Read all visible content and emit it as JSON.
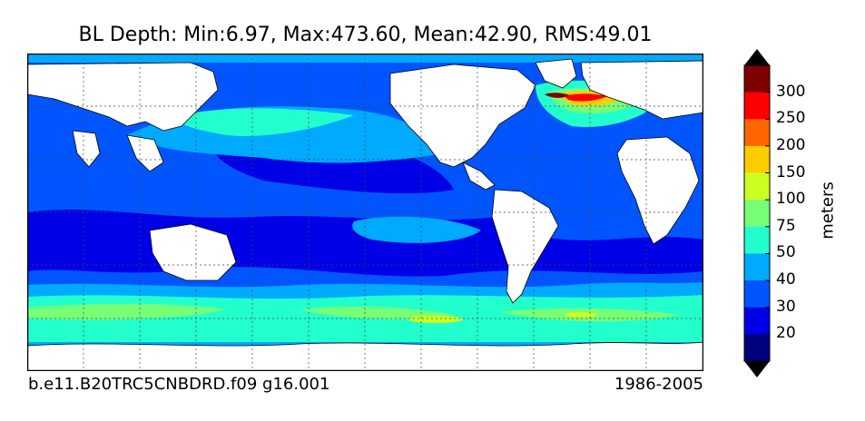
{
  "title": "BL Depth: Min:6.97, Max:473.60, Mean:42.90, RMS:49.01",
  "case_label": "b.e11.B20TRC5CNBDRD.f09 g16.001",
  "period_label": "1986-2005",
  "colorbar": {
    "units": "meters",
    "tick_labels": [
      "20",
      "30",
      "40",
      "50",
      "75",
      "100",
      "150",
      "200",
      "250",
      "300"
    ],
    "colors": [
      "#00007f",
      "#0000e6",
      "#0055ff",
      "#00aaff",
      "#22ffcc",
      "#77ff77",
      "#ccff22",
      "#ffcc00",
      "#ff6600",
      "#ff0000",
      "#7f0000"
    ],
    "extend": "both"
  },
  "map": {
    "projection": "cylindrical",
    "gridlines": "dotted",
    "land_color": "#ffffff",
    "field": "boundary layer depth"
  }
}
